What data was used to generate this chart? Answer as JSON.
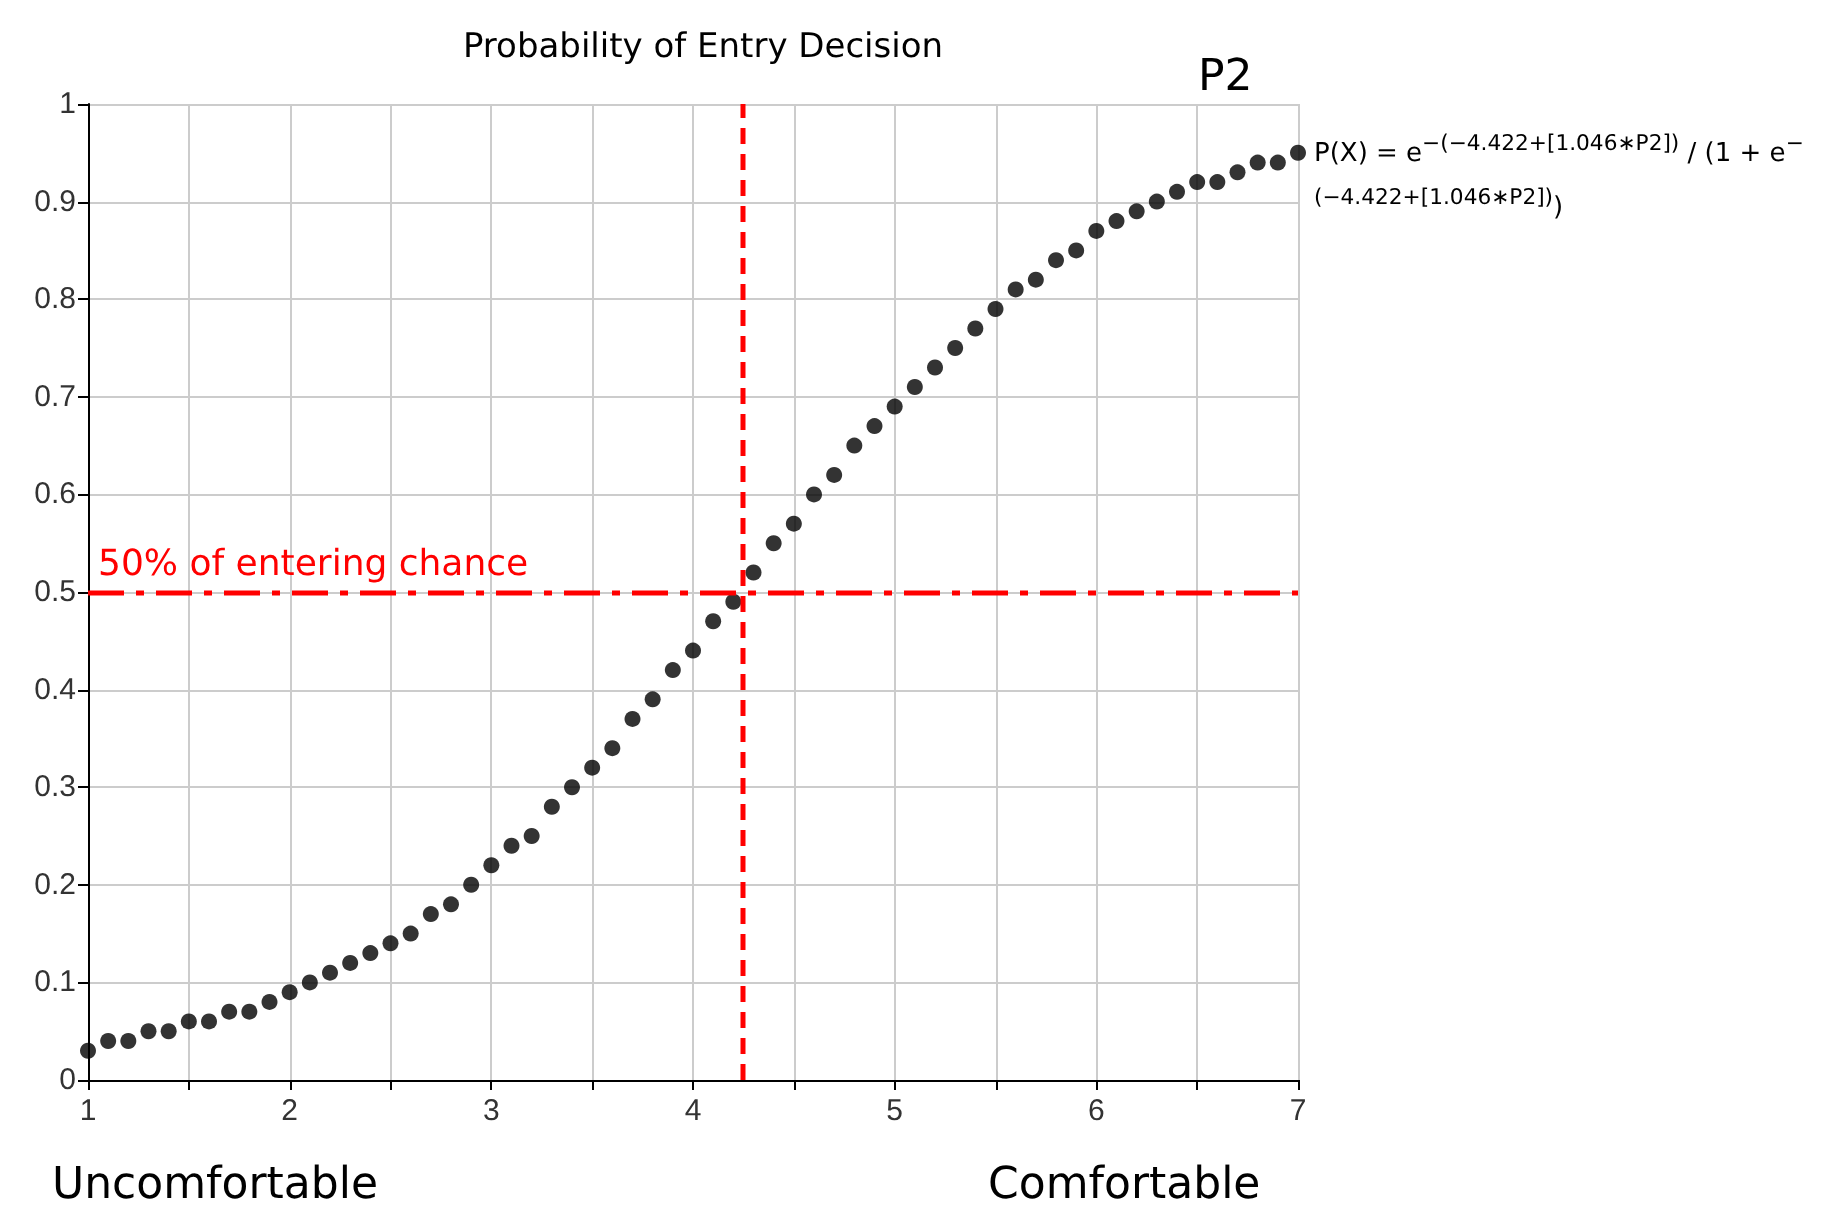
{
  "chart_data": {
    "type": "scatter",
    "title": "Probability of Entry Decision",
    "x": [
      1,
      1.1,
      1.2,
      1.3,
      1.4,
      1.5,
      1.6,
      1.7,
      1.8,
      1.9,
      2,
      2.1,
      2.2,
      2.3,
      2.4,
      2.5,
      2.6,
      2.7,
      2.8,
      2.9,
      3,
      3.1,
      3.2,
      3.3,
      3.4,
      3.5,
      3.6,
      3.7,
      3.8,
      3.9,
      4,
      4.1,
      4.2,
      4.3,
      4.4,
      4.5,
      4.6,
      4.7,
      4.8,
      4.9,
      5,
      5.1,
      5.2,
      5.3,
      5.4,
      5.5,
      5.6,
      5.7,
      5.8,
      5.9,
      6,
      6.1,
      6.2,
      6.3,
      6.4,
      6.5,
      6.6,
      6.7,
      6.8,
      6.9,
      7
    ],
    "series": [
      {
        "color": "#000000",
        "values": [
          0.03,
          0.04,
          0.04,
          0.05,
          0.05,
          0.06,
          0.06,
          0.07,
          0.07,
          0.08,
          0.09,
          0.1,
          0.11,
          0.12,
          0.13,
          0.14,
          0.15,
          0.17,
          0.18,
          0.2,
          0.22,
          0.24,
          0.25,
          0.28,
          0.3,
          0.32,
          0.34,
          0.37,
          0.39,
          0.42,
          0.44,
          0.47,
          0.49,
          0.52,
          0.55,
          0.57,
          0.6,
          0.62,
          0.65,
          0.67,
          0.69,
          0.71,
          0.73,
          0.75,
          0.77,
          0.79,
          0.81,
          0.82,
          0.84,
          0.85,
          0.87,
          0.88,
          0.89,
          0.9,
          0.91,
          0.92,
          0.92,
          0.93,
          0.94,
          0.94,
          0.95
        ]
      }
    ],
    "xlim": [
      1,
      7
    ],
    "xticks": [
      1,
      {
        "value": 1.5,
        "label": null
      },
      2,
      {
        "value": 2.5,
        "label": null
      },
      3,
      {
        "value": 3.5,
        "label": null
      },
      4,
      {
        "value": 4.5,
        "label": null
      },
      5,
      {
        "value": 5.5,
        "label": null
      },
      6,
      {
        "value": 6.5,
        "label": null
      },
      7
    ],
    "ylim": [
      0,
      1
    ],
    "yticks": [
      0,
      0.1,
      0.2,
      0.3,
      0.4,
      0.5,
      0.6,
      0.7,
      0.8,
      0.9,
      1
    ],
    "grid": true,
    "marker": "circle",
    "ref_lines": [
      {
        "axis": "y",
        "value": 0.5,
        "label": "50% of entering chance",
        "color": "#ff0000",
        "line_style": "dashdot"
      },
      {
        "axis": "x",
        "value": 4.25,
        "label": null,
        "color": "#ff0000",
        "line_style": "dashed"
      }
    ],
    "annotations": [
      "P2",
      "P(X) = e$^{−(−4.422+[1.046∗P2])}$ / (1 + e$^{−(−4.422+[1.046∗P2])}$)",
      "Uncomfortable",
      "Comfortable"
    ]
  }
}
